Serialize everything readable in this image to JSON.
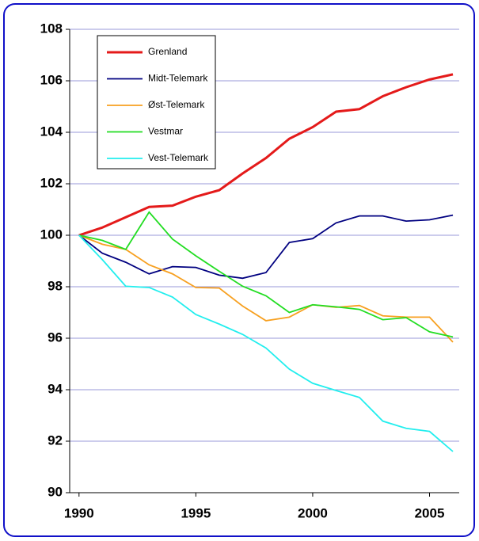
{
  "chart_data": {
    "type": "line",
    "x": [
      1990,
      1991,
      1992,
      1993,
      1994,
      1995,
      1996,
      1997,
      1998,
      1999,
      2000,
      2001,
      2002,
      2003,
      2004,
      2005,
      2006
    ],
    "series": [
      {
        "name": "Grenland",
        "color": "#e41a1a",
        "values": [
          100,
          100.3,
          100.7,
          101.1,
          101.15,
          101.5,
          101.75,
          102.4,
          103.0,
          103.75,
          104.2,
          104.8,
          104.9,
          105.4,
          105.75,
          106.05,
          106.25
        ]
      },
      {
        "name": "Midt-Telemark",
        "color": "#000080",
        "values": [
          100,
          99.3,
          98.95,
          98.5,
          98.78,
          98.75,
          98.45,
          98.33,
          98.55,
          99.72,
          99.87,
          100.48,
          100.75,
          100.75,
          100.55,
          100.6,
          100.78
        ]
      },
      {
        "name": "Øst-Telemark",
        "color": "#f7a020",
        "values": [
          100,
          99.65,
          99.45,
          98.85,
          98.5,
          97.97,
          97.95,
          97.25,
          96.68,
          96.82,
          97.3,
          97.2,
          97.27,
          96.87,
          96.82,
          96.82,
          95.85
        ]
      },
      {
        "name": "Vestmar",
        "color": "#22dd22",
        "values": [
          100,
          99.8,
          99.45,
          100.9,
          99.85,
          99.2,
          98.6,
          98.02,
          97.65,
          97.0,
          97.3,
          97.22,
          97.12,
          96.72,
          96.8,
          96.25,
          96.05
        ]
      },
      {
        "name": "Vest-Telemark",
        "color": "#22eeee",
        "values": [
          100,
          99.05,
          98.02,
          97.97,
          97.6,
          96.92,
          96.55,
          96.15,
          95.62,
          94.8,
          94.25,
          93.97,
          93.7,
          92.78,
          92.5,
          92.38,
          91.6
        ]
      }
    ],
    "xlim": [
      1989.6,
      2006.27
    ],
    "xticks": [
      1990,
      1995,
      2000,
      2005
    ],
    "ylim": [
      90,
      108
    ],
    "yticks": [
      90,
      92,
      94,
      96,
      98,
      100,
      102,
      104,
      106,
      108
    ],
    "grid": true
  }
}
